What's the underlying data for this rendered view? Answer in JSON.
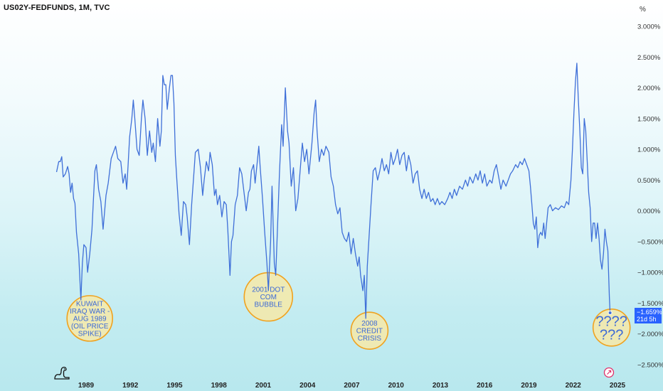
{
  "header": {
    "title": "US02Y-FEDFUNDS, 1M, TVC",
    "unit": "%"
  },
  "last_value_badge": {
    "value": "−1.659%",
    "countdown": "21d 5h"
  },
  "colors": {
    "line": "#3f6fd8",
    "circle_fill": "#f6e9a8",
    "circle_stroke": "#f0a21f",
    "badge": "#2962ff"
  },
  "icons": {
    "logo": "tradingview-dino-icon",
    "reset": "reset-chart-icon"
  },
  "chart_data": {
    "type": "line",
    "title": "US02Y-FEDFUNDS, 1M, TVC",
    "ylabel": "%",
    "ylim": [
      -2.65,
      3.3
    ],
    "xlim": [
      1986.4,
      2026.2
    ],
    "y_ticks": [
      "3.000%",
      "2.500%",
      "2.000%",
      "1.500%",
      "1.000%",
      "0.500%",
      "0.000%",
      "−0.500%",
      "−1.000%",
      "−1.500%",
      "−2.000%",
      "−2.500%"
    ],
    "y_tick_values": [
      3.0,
      2.5,
      2.0,
      1.5,
      1.0,
      0.5,
      0.0,
      -0.5,
      -1.0,
      -1.5,
      -2.0,
      -2.5
    ],
    "x_ticks": [
      "1989",
      "1992",
      "1995",
      "1998",
      "2001",
      "2004",
      "2007",
      "2010",
      "2013",
      "2016",
      "2019",
      "2022",
      "2025"
    ],
    "x_tick_values": [
      1989,
      1992,
      1995,
      1998,
      2001,
      2004,
      2007,
      2010,
      2013,
      2016,
      2019,
      2022,
      2025
    ],
    "series": [
      {
        "points": [
          [
            1987.0,
            0.63
          ],
          [
            1987.15,
            0.8
          ],
          [
            1987.25,
            0.8
          ],
          [
            1987.35,
            0.88
          ],
          [
            1987.45,
            0.55
          ],
          [
            1987.6,
            0.6
          ],
          [
            1987.75,
            0.72
          ],
          [
            1987.85,
            0.6
          ],
          [
            1987.95,
            0.3
          ],
          [
            1988.05,
            0.45
          ],
          [
            1988.15,
            0.2
          ],
          [
            1988.25,
            0.12
          ],
          [
            1988.35,
            -0.35
          ],
          [
            1988.5,
            -0.7
          ],
          [
            1988.65,
            -1.45
          ],
          [
            1988.75,
            -0.85
          ],
          [
            1988.85,
            -0.55
          ],
          [
            1989.0,
            -0.6
          ],
          [
            1989.1,
            -1.0
          ],
          [
            1989.25,
            -0.7
          ],
          [
            1989.4,
            -0.3
          ],
          [
            1989.5,
            0.2
          ],
          [
            1989.6,
            0.65
          ],
          [
            1989.7,
            0.75
          ],
          [
            1989.85,
            0.35
          ],
          [
            1990.0,
            0.15
          ],
          [
            1990.15,
            -0.3
          ],
          [
            1990.35,
            0.25
          ],
          [
            1990.5,
            0.45
          ],
          [
            1990.7,
            0.85
          ],
          [
            1990.85,
            0.95
          ],
          [
            1991.0,
            1.05
          ],
          [
            1991.15,
            0.85
          ],
          [
            1991.35,
            0.8
          ],
          [
            1991.5,
            0.45
          ],
          [
            1991.65,
            0.6
          ],
          [
            1991.75,
            0.35
          ],
          [
            1991.85,
            0.75
          ],
          [
            1991.95,
            1.2
          ],
          [
            1992.1,
            1.5
          ],
          [
            1992.2,
            1.8
          ],
          [
            1992.3,
            1.5
          ],
          [
            1992.45,
            1.0
          ],
          [
            1992.6,
            0.9
          ],
          [
            1992.75,
            1.5
          ],
          [
            1992.85,
            1.8
          ],
          [
            1993.0,
            1.5
          ],
          [
            1993.15,
            0.9
          ],
          [
            1993.3,
            1.3
          ],
          [
            1993.45,
            0.95
          ],
          [
            1993.55,
            1.1
          ],
          [
            1993.7,
            0.8
          ],
          [
            1993.85,
            1.5
          ],
          [
            1994.0,
            1.05
          ],
          [
            1994.1,
            1.3
          ],
          [
            1994.2,
            2.2
          ],
          [
            1994.3,
            2.05
          ],
          [
            1994.4,
            2.05
          ],
          [
            1994.5,
            1.65
          ],
          [
            1994.65,
            2.0
          ],
          [
            1994.75,
            2.2
          ],
          [
            1994.85,
            2.2
          ],
          [
            1994.95,
            1.75
          ],
          [
            1995.05,
            0.9
          ],
          [
            1995.15,
            0.5
          ],
          [
            1995.3,
            -0.05
          ],
          [
            1995.45,
            -0.4
          ],
          [
            1995.6,
            0.15
          ],
          [
            1995.75,
            0.1
          ],
          [
            1995.85,
            -0.1
          ],
          [
            1996.0,
            -0.55
          ],
          [
            1996.15,
            0.1
          ],
          [
            1996.3,
            0.6
          ],
          [
            1996.4,
            0.95
          ],
          [
            1996.6,
            1.0
          ],
          [
            1996.75,
            0.7
          ],
          [
            1996.9,
            0.25
          ],
          [
            1997.0,
            0.5
          ],
          [
            1997.15,
            0.8
          ],
          [
            1997.3,
            0.65
          ],
          [
            1997.4,
            0.95
          ],
          [
            1997.55,
            0.75
          ],
          [
            1997.7,
            0.25
          ],
          [
            1997.8,
            0.35
          ],
          [
            1997.9,
            0.1
          ],
          [
            1998.05,
            0.25
          ],
          [
            1998.2,
            -0.1
          ],
          [
            1998.35,
            0.15
          ],
          [
            1998.5,
            0.1
          ],
          [
            1998.6,
            -0.3
          ],
          [
            1998.75,
            -1.05
          ],
          [
            1998.85,
            -0.5
          ],
          [
            1998.95,
            -0.4
          ],
          [
            1999.1,
            0.1
          ],
          [
            1999.25,
            0.25
          ],
          [
            1999.4,
            0.7
          ],
          [
            1999.55,
            0.6
          ],
          [
            1999.7,
            0.3
          ],
          [
            1999.85,
            0.0
          ],
          [
            2000.0,
            0.3
          ],
          [
            2000.1,
            0.35
          ],
          [
            2000.2,
            0.65
          ],
          [
            2000.35,
            0.75
          ],
          [
            2000.45,
            0.45
          ],
          [
            2000.6,
            0.8
          ],
          [
            2000.7,
            1.05
          ],
          [
            2000.8,
            0.7
          ],
          [
            2000.95,
            0.2
          ],
          [
            2001.1,
            -0.35
          ],
          [
            2001.25,
            -0.85
          ],
          [
            2001.35,
            -1.3
          ],
          [
            2001.5,
            -0.5
          ],
          [
            2001.6,
            0.4
          ],
          [
            2001.75,
            -0.85
          ],
          [
            2001.85,
            -1.05
          ],
          [
            2001.95,
            -0.4
          ],
          [
            2002.1,
            0.6
          ],
          [
            2002.25,
            1.4
          ],
          [
            2002.35,
            1.05
          ],
          [
            2002.5,
            2.0
          ],
          [
            2002.65,
            1.3
          ],
          [
            2002.75,
            1.1
          ],
          [
            2002.9,
            0.4
          ],
          [
            2003.05,
            0.7
          ],
          [
            2003.2,
            0.0
          ],
          [
            2003.35,
            0.2
          ],
          [
            2003.5,
            0.65
          ],
          [
            2003.65,
            1.1
          ],
          [
            2003.8,
            0.8
          ],
          [
            2003.95,
            1.0
          ],
          [
            2004.1,
            0.6
          ],
          [
            2004.3,
            1.1
          ],
          [
            2004.45,
            1.6
          ],
          [
            2004.55,
            1.8
          ],
          [
            2004.65,
            1.3
          ],
          [
            2004.8,
            0.8
          ],
          [
            2004.95,
            1.0
          ],
          [
            2005.1,
            0.9
          ],
          [
            2005.25,
            1.05
          ],
          [
            2005.45,
            0.95
          ],
          [
            2005.6,
            0.55
          ],
          [
            2005.75,
            0.4
          ],
          [
            2005.9,
            0.1
          ],
          [
            2006.05,
            -0.05
          ],
          [
            2006.2,
            0.05
          ],
          [
            2006.35,
            -0.35
          ],
          [
            2006.5,
            -0.45
          ],
          [
            2006.65,
            -0.5
          ],
          [
            2006.8,
            -0.35
          ],
          [
            2006.95,
            -0.7
          ],
          [
            2007.1,
            -0.45
          ],
          [
            2007.25,
            -0.7
          ],
          [
            2007.4,
            -0.9
          ],
          [
            2007.5,
            -0.75
          ],
          [
            2007.6,
            -1.05
          ],
          [
            2007.75,
            -1.3
          ],
          [
            2007.85,
            -1.05
          ],
          [
            2007.95,
            -1.75
          ],
          [
            2008.05,
            -0.9
          ],
          [
            2008.15,
            -0.5
          ],
          [
            2008.3,
            0.1
          ],
          [
            2008.45,
            0.65
          ],
          [
            2008.6,
            0.7
          ],
          [
            2008.75,
            0.5
          ],
          [
            2008.9,
            0.65
          ],
          [
            2009.05,
            0.85
          ],
          [
            2009.2,
            0.65
          ],
          [
            2009.35,
            0.75
          ],
          [
            2009.5,
            0.6
          ],
          [
            2009.65,
            0.95
          ],
          [
            2009.8,
            0.75
          ],
          [
            2009.95,
            0.85
          ],
          [
            2010.1,
            1.0
          ],
          [
            2010.25,
            0.75
          ],
          [
            2010.4,
            0.9
          ],
          [
            2010.55,
            0.95
          ],
          [
            2010.7,
            0.65
          ],
          [
            2010.85,
            0.9
          ],
          [
            2011.0,
            0.75
          ],
          [
            2011.15,
            0.45
          ],
          [
            2011.3,
            0.6
          ],
          [
            2011.45,
            0.65
          ],
          [
            2011.6,
            0.35
          ],
          [
            2011.75,
            0.2
          ],
          [
            2011.9,
            0.35
          ],
          [
            2012.05,
            0.2
          ],
          [
            2012.2,
            0.3
          ],
          [
            2012.35,
            0.15
          ],
          [
            2012.5,
            0.2
          ],
          [
            2012.65,
            0.1
          ],
          [
            2012.8,
            0.2
          ],
          [
            2012.95,
            0.1
          ],
          [
            2013.1,
            0.15
          ],
          [
            2013.3,
            0.1
          ],
          [
            2013.5,
            0.2
          ],
          [
            2013.65,
            0.3
          ],
          [
            2013.8,
            0.2
          ],
          [
            2013.95,
            0.35
          ],
          [
            2014.1,
            0.25
          ],
          [
            2014.3,
            0.4
          ],
          [
            2014.5,
            0.35
          ],
          [
            2014.7,
            0.5
          ],
          [
            2014.85,
            0.4
          ],
          [
            2015.0,
            0.55
          ],
          [
            2015.2,
            0.45
          ],
          [
            2015.4,
            0.6
          ],
          [
            2015.55,
            0.5
          ],
          [
            2015.7,
            0.65
          ],
          [
            2015.85,
            0.45
          ],
          [
            2016.0,
            0.6
          ],
          [
            2016.15,
            0.4
          ],
          [
            2016.35,
            0.5
          ],
          [
            2016.5,
            0.45
          ],
          [
            2016.65,
            0.65
          ],
          [
            2016.8,
            0.75
          ],
          [
            2016.95,
            0.55
          ],
          [
            2017.1,
            0.35
          ],
          [
            2017.25,
            0.5
          ],
          [
            2017.45,
            0.4
          ],
          [
            2017.6,
            0.5
          ],
          [
            2017.75,
            0.6
          ],
          [
            2017.9,
            0.65
          ],
          [
            2018.1,
            0.75
          ],
          [
            2018.25,
            0.7
          ],
          [
            2018.4,
            0.8
          ],
          [
            2018.55,
            0.75
          ],
          [
            2018.7,
            0.85
          ],
          [
            2018.85,
            0.75
          ],
          [
            2019.0,
            0.65
          ],
          [
            2019.1,
            0.4
          ],
          [
            2019.2,
            0.1
          ],
          [
            2019.3,
            -0.2
          ],
          [
            2019.4,
            -0.3
          ],
          [
            2019.5,
            -0.1
          ],
          [
            2019.6,
            -0.6
          ],
          [
            2019.7,
            -0.4
          ],
          [
            2019.8,
            -0.35
          ],
          [
            2019.9,
            -0.4
          ],
          [
            2020.0,
            -0.2
          ],
          [
            2020.1,
            -0.45
          ],
          [
            2020.2,
            -0.2
          ],
          [
            2020.3,
            0.05
          ],
          [
            2020.45,
            0.1
          ],
          [
            2020.6,
            0.0
          ],
          [
            2020.8,
            0.05
          ],
          [
            2021.0,
            0.02
          ],
          [
            2021.2,
            0.08
          ],
          [
            2021.4,
            0.05
          ],
          [
            2021.55,
            0.15
          ],
          [
            2021.7,
            0.1
          ],
          [
            2021.85,
            0.5
          ],
          [
            2021.95,
            1.0
          ],
          [
            2022.05,
            1.6
          ],
          [
            2022.15,
            2.1
          ],
          [
            2022.25,
            2.4
          ],
          [
            2022.35,
            1.8
          ],
          [
            2022.45,
            1.3
          ],
          [
            2022.55,
            0.7
          ],
          [
            2022.65,
            0.6
          ],
          [
            2022.75,
            1.5
          ],
          [
            2022.85,
            1.3
          ],
          [
            2022.95,
            0.8
          ],
          [
            2023.05,
            0.3
          ],
          [
            2023.15,
            0.05
          ],
          [
            2023.25,
            -0.5
          ],
          [
            2023.35,
            -0.2
          ],
          [
            2023.45,
            -0.2
          ],
          [
            2023.55,
            -0.45
          ],
          [
            2023.65,
            -0.2
          ],
          [
            2023.75,
            -0.45
          ],
          [
            2023.85,
            -0.8
          ],
          [
            2023.95,
            -0.95
          ],
          [
            2024.05,
            -0.7
          ],
          [
            2024.15,
            -0.3
          ],
          [
            2024.25,
            -0.5
          ],
          [
            2024.35,
            -0.65
          ],
          [
            2024.45,
            -1.4
          ],
          [
            2024.5,
            -1.659
          ]
        ]
      }
    ],
    "annotations": [
      {
        "lines": [
          "KUWAIT",
          "IRAQ WAR -",
          "AUG 1989",
          "(OIL PRICE",
          "SPIKE)"
        ],
        "x": 1989.25,
        "y": -1.75
      },
      {
        "lines": [
          "2001 DOT",
          "COM",
          "BUBBLE"
        ],
        "x": 2001.35,
        "y": -1.4
      },
      {
        "lines": [
          "2008",
          "CREDIT",
          "CRISIS"
        ],
        "x": 2008.2,
        "y": -1.95
      },
      {
        "lines": [
          "????",
          "???"
        ],
        "x": 2024.6,
        "y": -1.9
      }
    ]
  }
}
